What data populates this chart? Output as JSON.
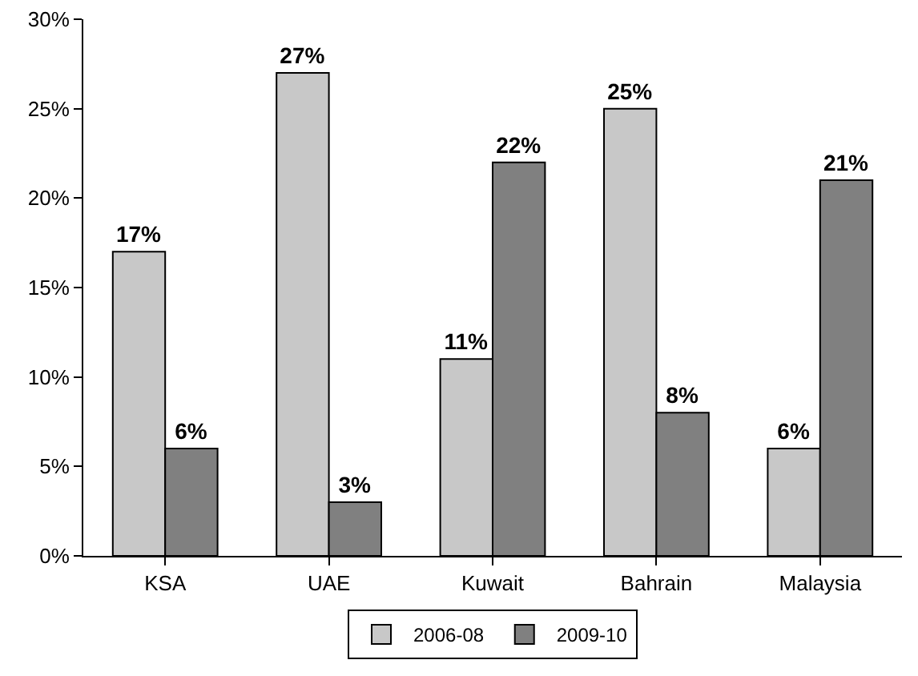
{
  "chart_data": {
    "type": "bar",
    "categories": [
      "KSA",
      "UAE",
      "Kuwait",
      "Bahrain",
      "Malaysia"
    ],
    "series": [
      {
        "name": "2006-08",
        "color": "#c8c8c8",
        "values": [
          17,
          27,
          11,
          25,
          6
        ],
        "value_labels": [
          "17%",
          "27%",
          "11%",
          "25%",
          "6%"
        ]
      },
      {
        "name": "2009-10",
        "color": "#808080",
        "values": [
          6,
          3,
          22,
          8,
          21
        ],
        "value_labels": [
          "6%",
          "3%",
          "22%",
          "8%",
          "21%"
        ]
      }
    ],
    "ylim": [
      0,
      30
    ],
    "yticks": [
      {
        "value": 0,
        "label": "0%"
      },
      {
        "value": 5,
        "label": "5%"
      },
      {
        "value": 10,
        "label": "10%"
      },
      {
        "value": 15,
        "label": "15%"
      },
      {
        "value": 20,
        "label": "20%"
      },
      {
        "value": 25,
        "label": "25%"
      },
      {
        "value": 30,
        "label": "30%"
      }
    ],
    "grid": false,
    "legend": "bottom"
  }
}
